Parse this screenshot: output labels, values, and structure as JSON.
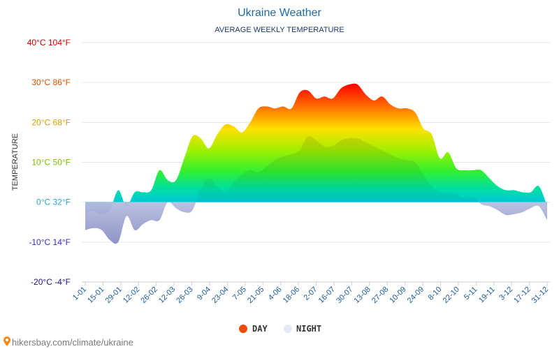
{
  "chart_data": {
    "type": "area",
    "title": "Ukraine Weather",
    "subtitle": "AVERAGE WEEKLY TEMPERATURE",
    "ylabel": "TEMPERATURE",
    "ylim": [
      -20,
      40
    ],
    "y_ticks": [
      {
        "value": 40,
        "label": "40°C 104°F",
        "color": "#d40000"
      },
      {
        "value": 30,
        "label": "30°C 86°F",
        "color": "#e05000"
      },
      {
        "value": 20,
        "label": "20°C 68°F",
        "color": "#d8a000"
      },
      {
        "value": 10,
        "label": "10°C 50°F",
        "color": "#7ac000"
      },
      {
        "value": 0,
        "label": "0°C 32°F",
        "color": "#2aa6d8"
      },
      {
        "value": -10,
        "label": "-10°C 14°F",
        "color": "#3030c0"
      },
      {
        "value": -20,
        "label": "-20°C -4°F",
        "color": "#201090"
      }
    ],
    "x_labels": [
      "1-01",
      "15-01",
      "29-01",
      "12-02",
      "26-02",
      "12-03",
      "26-03",
      "9-04",
      "23-04",
      "7-05",
      "21-05",
      "4-06",
      "18-06",
      "2-07",
      "16-07",
      "30-07",
      "13-08",
      "27-08",
      "10-09",
      "24-09",
      "8-10",
      "22-10",
      "5-11",
      "19-11",
      "3-12",
      "17-12",
      "31-12"
    ],
    "grid": true,
    "series": [
      {
        "name": "DAY",
        "color": "#f04a0a",
        "values": [
          -2.5,
          -2.2,
          -3,
          -2,
          3,
          -1,
          2.5,
          2.5,
          3,
          8,
          5.5,
          5.5,
          11,
          16.5,
          16,
          13.5,
          17,
          19.5,
          19,
          17.5,
          20,
          23.5,
          24,
          23.5,
          24,
          23.5,
          27.5,
          28,
          26,
          26.5,
          26,
          28.5,
          29.5,
          29.5,
          27,
          25.5,
          26.5,
          24.5,
          23.5,
          23.5,
          22.5,
          18.5,
          17,
          11,
          12.5,
          8.5,
          8,
          8,
          8,
          6,
          4,
          3,
          3,
          2.5,
          2.5,
          4,
          -1
        ]
      },
      {
        "name": "NIGHT",
        "color": "#e6e8f3",
        "values": [
          -7,
          -6.5,
          -7,
          -9.5,
          -10,
          -3.5,
          -7,
          -5.5,
          -4.5,
          -4.5,
          0,
          -1.5,
          -2.5,
          -2,
          3.5,
          6,
          4,
          2.5,
          5,
          7,
          8,
          7.5,
          9,
          10.5,
          11.5,
          12,
          13,
          16.5,
          15.5,
          14,
          14,
          15.5,
          16,
          16,
          15,
          14,
          13,
          12,
          11,
          10.5,
          10,
          7,
          4,
          2.5,
          2.5,
          2,
          1,
          1.5,
          -0.5,
          -1,
          -2,
          -3.2,
          -3,
          -2.5,
          -1.5,
          -1,
          -4.5
        ]
      }
    ]
  },
  "legend": {
    "day_label": "DAY",
    "night_label": "NIGHT",
    "day_color": "#f04a0a",
    "night_color": "#e6e8f3"
  },
  "source": {
    "text": "hikersbay.com/climate/ukraine",
    "icon": "map-pin-icon"
  }
}
